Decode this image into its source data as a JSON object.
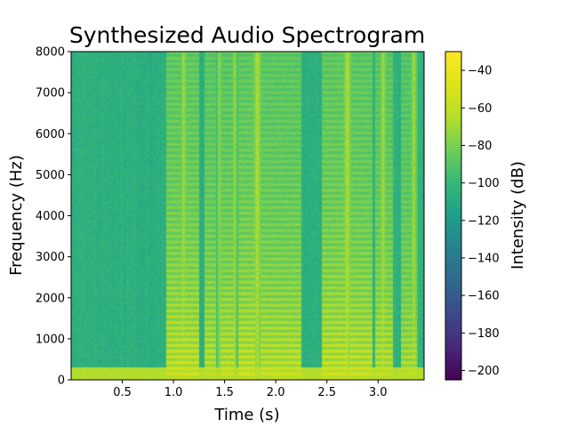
{
  "chart_data": {
    "type": "heatmap",
    "title": "Synthesized Audio Spectrogram",
    "xlabel": "Time (s)",
    "ylabel": "Frequency (Hz)",
    "colorbar_label": "Intensity (dB)",
    "colormap": "viridis",
    "xlim": [
      0,
      3.45
    ],
    "ylim": [
      0,
      8000
    ],
    "clim": [
      -205,
      -30
    ],
    "x_ticks": [
      0.5,
      1.0,
      1.5,
      2.0,
      2.5,
      3.0
    ],
    "x_tick_labels": [
      "0.5",
      "1.0",
      "1.5",
      "2.0",
      "2.5",
      "3.0"
    ],
    "y_ticks": [
      0,
      1000,
      2000,
      3000,
      4000,
      5000,
      6000,
      7000,
      8000
    ],
    "y_tick_labels": [
      "0",
      "1000",
      "2000",
      "3000",
      "4000",
      "5000",
      "6000",
      "7000",
      "8000"
    ],
    "colorbar_ticks": [
      -40,
      -60,
      -80,
      -100,
      -120,
      -140,
      -160,
      -180,
      -200
    ],
    "colorbar_tick_labels": [
      "−40",
      "−60",
      "−80",
      "−100",
      "−120",
      "−140",
      "−160",
      "−180",
      "−200"
    ],
    "background_level_db": -105,
    "low_frequency_band": {
      "upper_hz": 300,
      "level_db": -65
    },
    "voiced_segments": [
      {
        "start_s": 0.93,
        "end_s": 1.25,
        "level_db": -45
      },
      {
        "start_s": 1.3,
        "end_s": 1.42,
        "level_db": -50
      },
      {
        "start_s": 1.46,
        "end_s": 1.6,
        "level_db": -48
      },
      {
        "start_s": 1.63,
        "end_s": 1.8,
        "level_db": -45
      },
      {
        "start_s": 1.85,
        "end_s": 2.25,
        "level_db": -48
      },
      {
        "start_s": 2.45,
        "end_s": 2.7,
        "level_db": -45
      },
      {
        "start_s": 2.72,
        "end_s": 2.95,
        "level_db": -47
      },
      {
        "start_s": 2.97,
        "end_s": 3.15,
        "level_db": -50
      },
      {
        "start_s": 3.22,
        "end_s": 3.38,
        "level_db": -55
      }
    ],
    "broadband_bursts": [
      {
        "time_s": 1.1,
        "width_s": 0.05,
        "level_db": -60
      },
      {
        "time_s": 1.45,
        "width_s": 0.04,
        "level_db": -65
      },
      {
        "time_s": 1.6,
        "width_s": 0.04,
        "level_db": -62
      },
      {
        "time_s": 1.82,
        "width_s": 0.07,
        "level_db": -55
      },
      {
        "time_s": 2.7,
        "width_s": 0.07,
        "level_db": -55
      },
      {
        "time_s": 3.05,
        "width_s": 0.05,
        "level_db": -58
      },
      {
        "time_s": 3.35,
        "width_s": 0.05,
        "level_db": -60
      }
    ]
  }
}
